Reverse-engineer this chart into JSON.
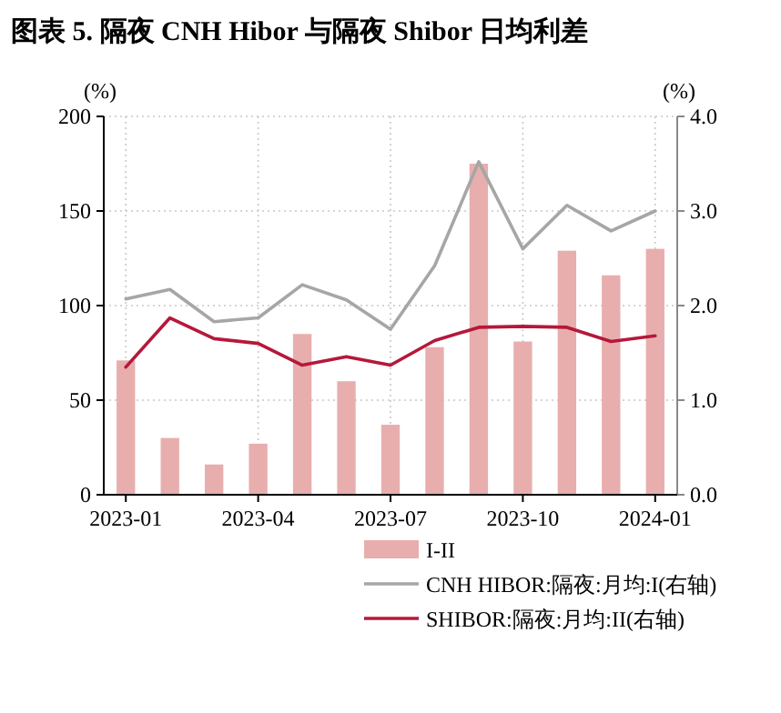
{
  "chart_data": {
    "type": "bar",
    "title": "图表 5. 隔夜 CNH Hibor 与隔夜 Shibor 日均利差",
    "ylabel": "(%)",
    "y2label": "(%)",
    "categories": [
      "2023-01",
      null,
      null,
      "2023-04",
      null,
      null,
      "2023-07",
      null,
      null,
      "2023-10",
      null,
      null,
      "2024-01"
    ],
    "series": [
      {
        "name": "I-II",
        "color": "#e8aeae",
        "values": [
          71,
          30,
          16,
          27,
          85,
          60,
          37,
          78,
          175,
          81,
          129,
          116,
          130
        ]
      },
      {
        "name": "CNH HIBOR:隔夜:月均:I(右轴)",
        "type": "line",
        "axis": "y2",
        "color": "#a6a6a6",
        "values": [
          2.07,
          2.17,
          1.83,
          1.87,
          2.22,
          2.06,
          1.75,
          2.42,
          3.52,
          2.6,
          3.06,
          2.79,
          3.0
        ]
      },
      {
        "name": "SHIBOR:隔夜:月均:II(右轴)",
        "type": "line",
        "axis": "y2",
        "color": "#b5183b",
        "values": [
          1.35,
          1.87,
          1.65,
          1.6,
          1.37,
          1.46,
          1.37,
          1.63,
          1.77,
          1.78,
          1.77,
          1.62,
          1.68
        ]
      }
    ],
    "ylim": [
      0,
      200
    ],
    "yticks": [
      0,
      50,
      100,
      150,
      200
    ],
    "y2lim": [
      0,
      4
    ],
    "y2ticks": [
      {
        "value": 0,
        "label": "0.0"
      },
      {
        "value": 1,
        "label": "1.0"
      },
      {
        "value": 2,
        "label": "2.0"
      },
      {
        "value": 3,
        "label": "3.0"
      },
      {
        "value": 4,
        "label": "4.0"
      }
    ],
    "grid": true,
    "legend": "bottom"
  }
}
